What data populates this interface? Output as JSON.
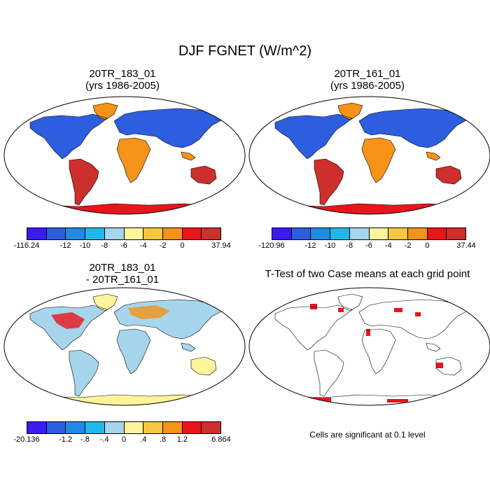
{
  "figure": {
    "title": "DJF FGNET (W/m^2)",
    "panels": [
      {
        "line1": "20TR_183_01",
        "line2": "(yrs 1986-2005)"
      },
      {
        "line1": "20TR_161_01",
        "line2": "(yrs 1986-2005)"
      },
      {
        "line1": "20TR_183_01",
        "line2": "- 20TR_161_01"
      },
      {
        "line1": "T-Test of two Case means at each grid point",
        "line2": ""
      }
    ],
    "note": "Cells are significant at 0.1 level"
  },
  "colorbars": {
    "mean": {
      "colors": [
        "#3a1cf0",
        "#2d5ee0",
        "#1e8ae6",
        "#20b8ea",
        "#a6d5ec",
        "#fdf49a",
        "#f8c640",
        "#f59218",
        "#e8151a",
        "#cc2f2c"
      ],
      "cb1_labels": [
        "-116.24",
        "-12",
        "-10",
        "-8",
        "-6",
        "-4",
        "-2",
        "0",
        "37.94"
      ],
      "cb2_labels": [
        "-120.96",
        "-12",
        "-10",
        "-8",
        "-6",
        "-4",
        "-2",
        "0",
        "37.44"
      ]
    },
    "diff": {
      "colors": [
        "#3a1cf0",
        "#2d5ee0",
        "#1e8ae6",
        "#20b8ea",
        "#a6d5ec",
        "#fdf49a",
        "#f8c640",
        "#f59218",
        "#e8151a",
        "#cc2f2c"
      ],
      "labels": [
        "-20.136",
        "-1.2",
        "-.8",
        "-.4",
        "0",
        ".4",
        ".8",
        "1.2",
        "6.864"
      ]
    }
  }
}
